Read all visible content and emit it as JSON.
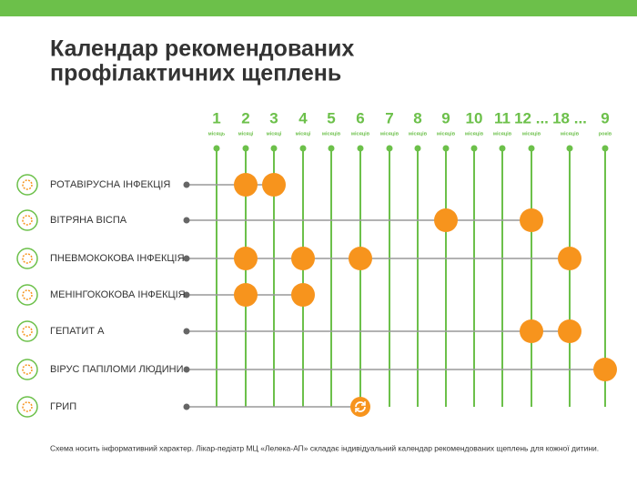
{
  "title": [
    "Календар рекомендованих",
    "профілактичних щеплень"
  ],
  "columns": [
    {
      "label": "1",
      "unit": "місяць"
    },
    {
      "label": "2",
      "unit": "місяці"
    },
    {
      "label": "3",
      "unit": "місяці"
    },
    {
      "label": "4",
      "unit": "місяці"
    },
    {
      "label": "5",
      "unit": "місяців"
    },
    {
      "label": "6",
      "unit": "місяців"
    },
    {
      "label": "7",
      "unit": "місяців"
    },
    {
      "label": "8",
      "unit": "місяців"
    },
    {
      "label": "9",
      "unit": "місяців"
    },
    {
      "label": "10",
      "unit": "місяців"
    },
    {
      "label": "11",
      "unit": "місяців"
    },
    {
      "label": "12 ...",
      "unit": "місяців"
    },
    {
      "label": "18 ...",
      "unit": "місяців"
    },
    {
      "label": "9",
      "unit": "років"
    }
  ],
  "rows": [
    {
      "name": "РОТАВІРУСНА ІНФЕКЦІЯ",
      "doses": [
        1,
        2
      ]
    },
    {
      "name": "ВІТРЯНА ВІСПА",
      "doses": [
        8,
        11
      ]
    },
    {
      "name": "ПНЕВМОКОКОВА ІНФЕКЦІЯ",
      "doses": [
        1,
        3,
        5,
        12
      ]
    },
    {
      "name": "МЕНІНГОКОКОВА ІНФЕКЦІЯ",
      "doses": [
        1,
        3
      ]
    },
    {
      "name": "ГЕПАТИТ А",
      "doses": [
        11,
        12
      ]
    },
    {
      "name": "ВІРУС ПАПІЛОМИ ЛЮДИНИ",
      "doses": [
        13
      ]
    },
    {
      "name": "ГРИП",
      "doses": [],
      "yearly_dose": 5
    }
  ],
  "footnote": "Схема носить інформативний характер. Лікар-педіатр МЦ «Лелека-АП» складає індивідуальний календар рекомендованих щеплень для кожної дитини."
}
